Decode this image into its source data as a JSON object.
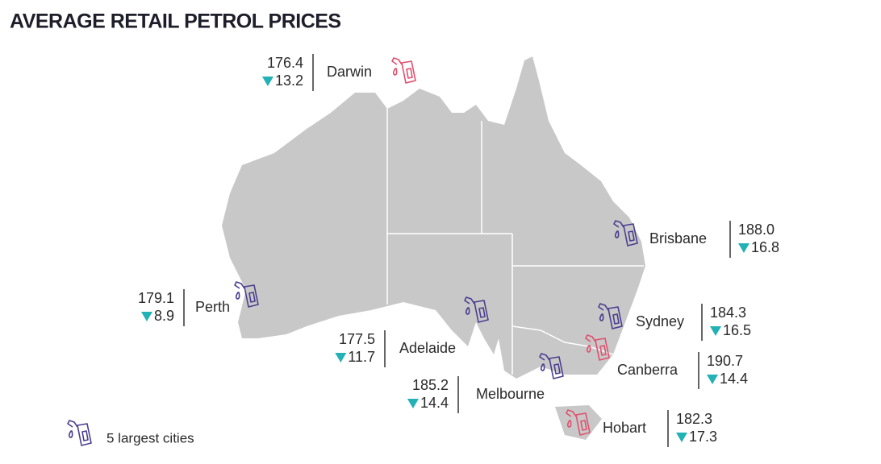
{
  "header": {
    "title": "AVERAGE RETAIL PETROL PRICES"
  },
  "cities": [
    {
      "name": "Darwin",
      "price": "176.4",
      "change": "13.2",
      "largest": false
    },
    {
      "name": "Perth",
      "price": "179.1",
      "change": "8.9",
      "largest": true
    },
    {
      "name": "Adelaide",
      "price": "177.5",
      "change": "11.7",
      "largest": true
    },
    {
      "name": "Melbourne",
      "price": "185.2",
      "change": "14.4",
      "largest": true
    },
    {
      "name": "Brisbane",
      "price": "188.0",
      "change": "16.8",
      "largest": true
    },
    {
      "name": "Sydney",
      "price": "184.3",
      "change": "16.5",
      "largest": true
    },
    {
      "name": "Canberra",
      "price": "190.7",
      "change": "14.4",
      "largest": false
    },
    {
      "name": "Hobart",
      "price": "182.3",
      "change": "17.3",
      "largest": false
    }
  ],
  "legend": {
    "label": "5 largest cities"
  }
}
